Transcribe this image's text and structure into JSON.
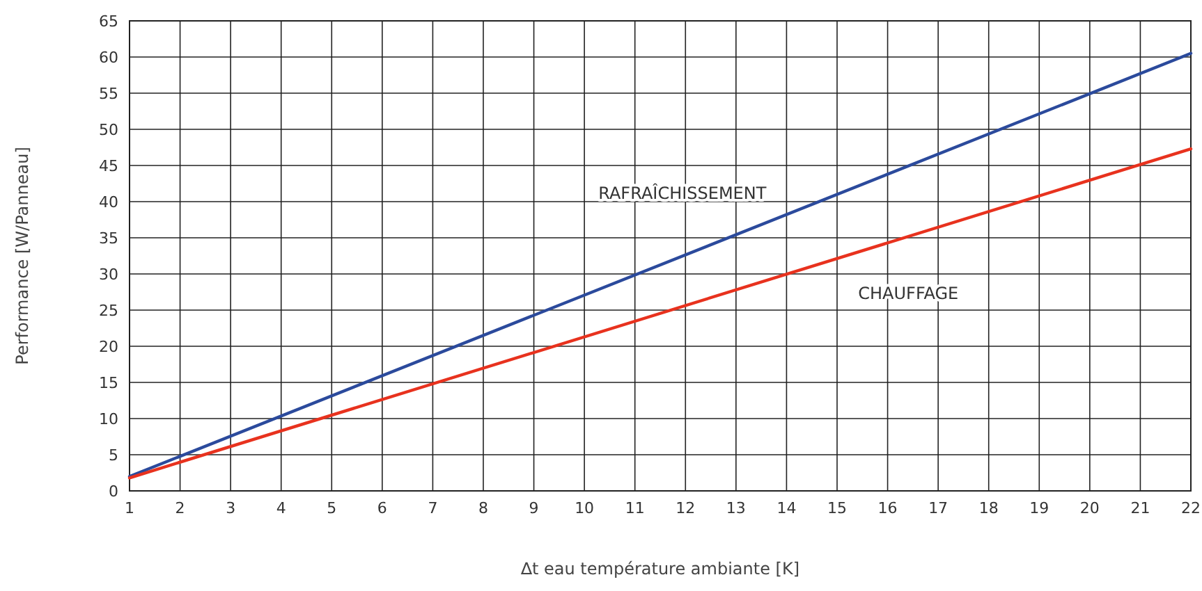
{
  "chart_data": {
    "type": "line",
    "xlabel": "∆t eau température ambiante [K]",
    "ylabel": "Performance [W/Panneau]",
    "xlim": [
      1,
      22
    ],
    "ylim": [
      0,
      65
    ],
    "xticks": [
      1,
      2,
      3,
      4,
      5,
      6,
      7,
      8,
      9,
      10,
      11,
      12,
      13,
      14,
      15,
      16,
      17,
      18,
      19,
      20,
      21,
      22
    ],
    "yticks": [
      0,
      5,
      10,
      15,
      20,
      25,
      30,
      35,
      40,
      45,
      50,
      55,
      60,
      65
    ],
    "grid": true,
    "marker": "none",
    "line_style": "solid",
    "x": [
      1,
      22
    ],
    "series": [
      {
        "name": "RAFRAÎCHISSEMENT",
        "color": "#2b4a9c",
        "values": [
          2,
          60.5
        ]
      },
      {
        "name": "CHAUFFAGE",
        "color": "#e8321e",
        "values": [
          1.8,
          47.3
        ]
      }
    ]
  }
}
